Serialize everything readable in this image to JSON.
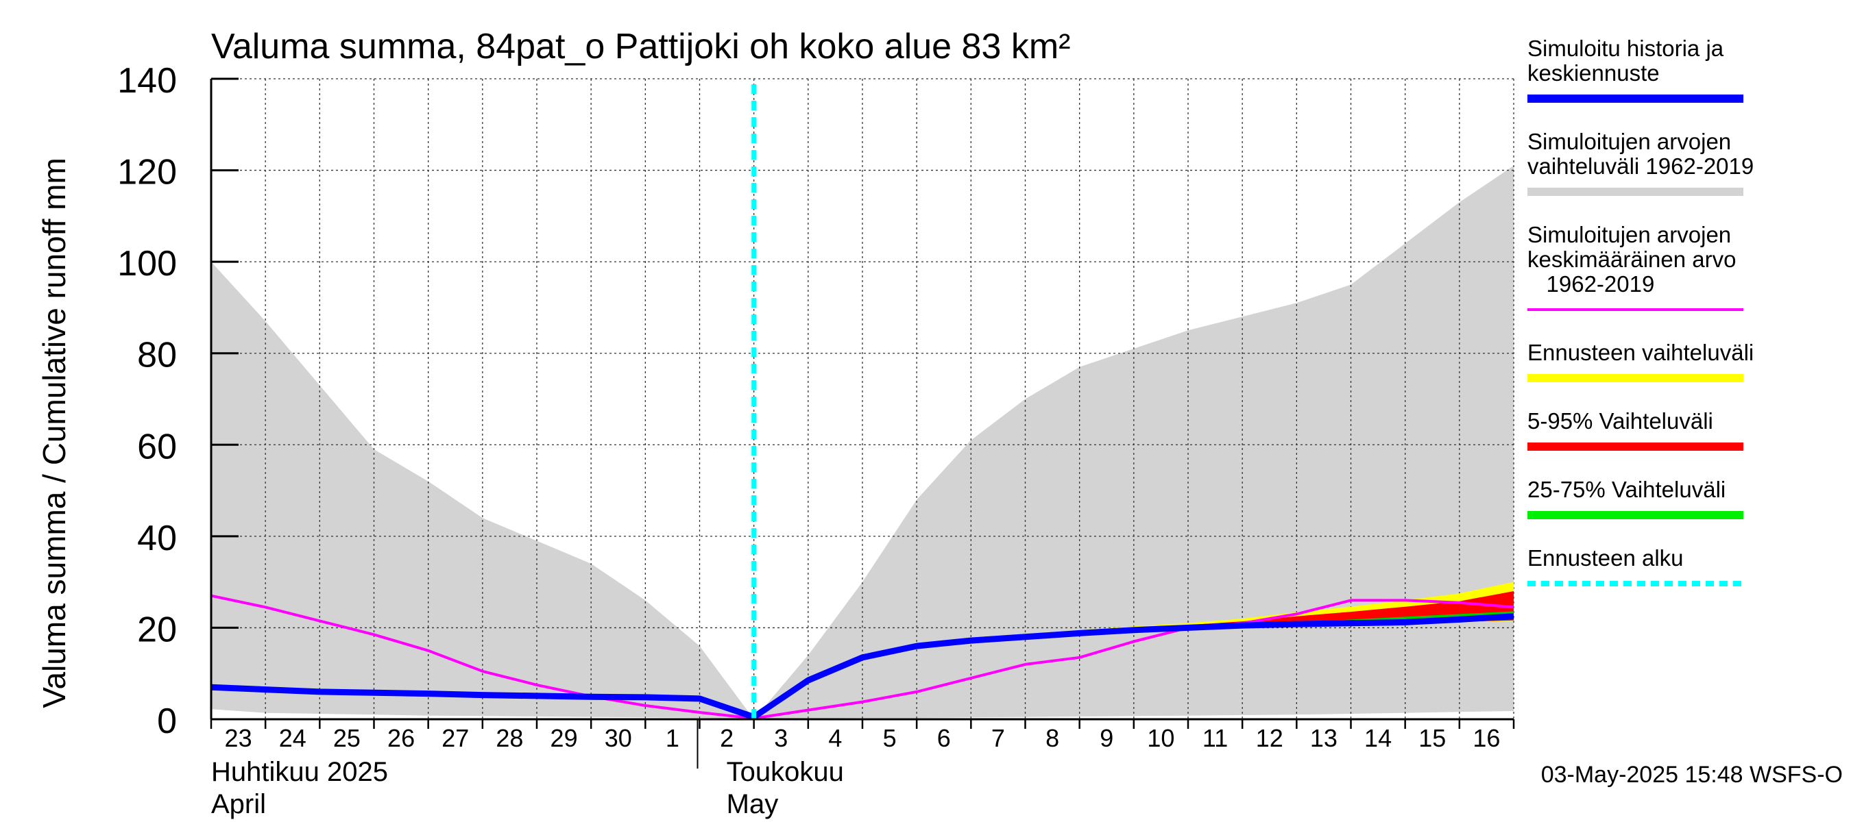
{
  "chart_data": {
    "type": "area",
    "title": "Valuma summa, 84pat_o Pattijoki oh koko alue 83 km²",
    "ylabel": "Valuma summa / Cumulative runoff    mm",
    "ylim": [
      0,
      140
    ],
    "y_ticks": [
      0,
      20,
      40,
      60,
      80,
      100,
      120,
      140
    ],
    "x_range": [
      0,
      24
    ],
    "x_tick_labels": [
      "23",
      "24",
      "25",
      "26",
      "27",
      "28",
      "29",
      "30",
      "1",
      "2",
      "3",
      "4",
      "5",
      "6",
      "7",
      "8",
      "9",
      "10",
      "11",
      "12",
      "13",
      "14",
      "15",
      "16"
    ],
    "month_labels": [
      {
        "fi": "Huhtikuu  2025",
        "en": "April",
        "at": 0
      },
      {
        "fi": "Toukokuu",
        "en": "May",
        "at": 9
      }
    ],
    "forecast_start_x": 10,
    "grid": true,
    "legend_position": "right",
    "timestamp": "03-May-2025 15:48 WSFS-O",
    "series": [
      {
        "name": "Simuloitujen arvojen vaihteluväli 1962-2019",
        "kind": "band",
        "color": "#d3d3d3",
        "x": [
          0,
          1,
          2,
          3,
          4,
          5,
          6,
          7,
          8,
          9,
          10,
          11,
          12,
          13,
          14,
          15,
          16,
          17,
          18,
          19,
          20,
          21,
          22,
          23,
          24
        ],
        "upper": [
          100,
          87,
          73,
          59,
          52,
          44,
          39,
          34,
          26,
          16,
          0,
          14,
          30,
          48,
          61,
          70,
          77,
          81,
          85,
          88,
          91,
          95,
          104,
          113,
          121
        ],
        "lower": [
          2.2,
          1.4,
          1.2,
          1.0,
          0.8,
          0.7,
          0.6,
          0.5,
          0.4,
          0.3,
          0,
          0.2,
          0.3,
          0.3,
          0.4,
          0.5,
          0.6,
          0.7,
          0.8,
          0.9,
          1.0,
          1.2,
          1.4,
          1.6,
          1.8
        ]
      },
      {
        "name": "Ennusteen vaihteluväli",
        "kind": "band",
        "color": "#ffff00",
        "x": [
          14,
          15,
          16,
          17,
          18,
          19,
          20,
          21,
          22,
          23,
          24
        ],
        "upper": [
          17.5,
          18.5,
          19.5,
          20.3,
          21.0,
          22.0,
          23.4,
          24.6,
          26.0,
          27.5,
          30.0
        ],
        "lower": [
          17.0,
          17.8,
          18.5,
          19.2,
          19.7,
          20.1,
          20.4,
          20.7,
          21.0,
          21.2,
          21.5
        ]
      },
      {
        "name": "5-95% Vaihteluväli",
        "kind": "band",
        "color": "#ff0000",
        "x": [
          16,
          17,
          18,
          19,
          20,
          21,
          22,
          23,
          24
        ],
        "upper": [
          19.0,
          19.8,
          20.6,
          21.4,
          22.5,
          23.5,
          24.6,
          25.8,
          28.0
        ],
        "lower": [
          18.5,
          19.2,
          19.7,
          20.1,
          20.5,
          20.8,
          21.0,
          21.3,
          21.6
        ]
      },
      {
        "name": "25-75% Vaihteluväli",
        "kind": "band",
        "color": "#00cc00",
        "x": [
          18,
          19,
          20,
          21,
          22,
          23,
          24
        ],
        "upper": [
          20.2,
          20.8,
          21.2,
          21.8,
          22.4,
          23.0,
          23.6
        ],
        "lower": [
          19.8,
          20.2,
          20.5,
          20.8,
          21.1,
          21.4,
          21.8
        ]
      },
      {
        "name": "Simuloitujen arvojen keskimääräinen arvo 1962-2019",
        "kind": "line",
        "color": "#ff00ff",
        "x": [
          0,
          1,
          2,
          3,
          4,
          5,
          6,
          7,
          8,
          9,
          10,
          11,
          12,
          13,
          14,
          15,
          16,
          17,
          18,
          19,
          20,
          21,
          22,
          23,
          24
        ],
        "values": [
          27,
          24.5,
          21.5,
          18.5,
          15,
          10.5,
          7.5,
          5,
          3,
          1.5,
          0.2,
          2,
          3.8,
          6,
          9,
          12,
          13.5,
          17,
          20,
          21,
          23,
          26,
          26,
          25.5,
          24.5
        ]
      },
      {
        "name": "Simuloitu historia ja keskiennuste",
        "kind": "line",
        "color": "#0000ff",
        "x": [
          0,
          1,
          2,
          3,
          4,
          5,
          6,
          7,
          8,
          9,
          10,
          11,
          12,
          13,
          14,
          15,
          16,
          17,
          18,
          19,
          20,
          21,
          22,
          23,
          24
        ],
        "values": [
          7,
          6.5,
          6,
          5.8,
          5.6,
          5.3,
          5.1,
          4.9,
          4.8,
          4.5,
          0.5,
          8.5,
          13.5,
          16,
          17.2,
          18,
          18.8,
          19.5,
          20,
          20.5,
          20.8,
          21.0,
          21.2,
          21.8,
          22.5
        ]
      },
      {
        "name": "Ennusteen alku",
        "kind": "vline",
        "color": "#00ffff",
        "x": 10
      }
    ],
    "legend": [
      {
        "label_lines": [
          "Simuloitu historia ja",
          "keskiennuste"
        ],
        "color": "#0000ff",
        "style": "solid"
      },
      {
        "label_lines": [
          "Simuloitujen arvojen",
          "vaihteluväli 1962-2019"
        ],
        "color": "#d3d3d3",
        "style": "solid"
      },
      {
        "label_lines": [
          "Simuloitujen arvojen",
          "keskimääräinen arvo",
          "   1962-2019"
        ],
        "color": "#ff00ff",
        "style": "thin"
      },
      {
        "label_lines": [
          "Ennusteen vaihteluväli"
        ],
        "color": "#ffff00",
        "style": "solid"
      },
      {
        "label_lines": [
          "5-95% Vaihteluväli"
        ],
        "color": "#ff0000",
        "style": "solid"
      },
      {
        "label_lines": [
          "25-75% Vaihteluväli"
        ],
        "color": "#00ee00",
        "style": "solid"
      },
      {
        "label_lines": [
          "Ennusteen alku"
        ],
        "color": "#00ffff",
        "style": "dashed"
      }
    ]
  }
}
